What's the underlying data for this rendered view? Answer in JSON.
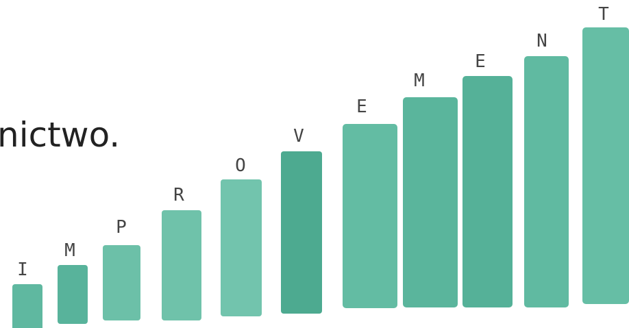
{
  "caption": "nictwo.",
  "letters": [
    "I",
    "M",
    "P",
    "R",
    "O",
    "V",
    "E",
    "M",
    "E",
    "N",
    "T"
  ]
}
